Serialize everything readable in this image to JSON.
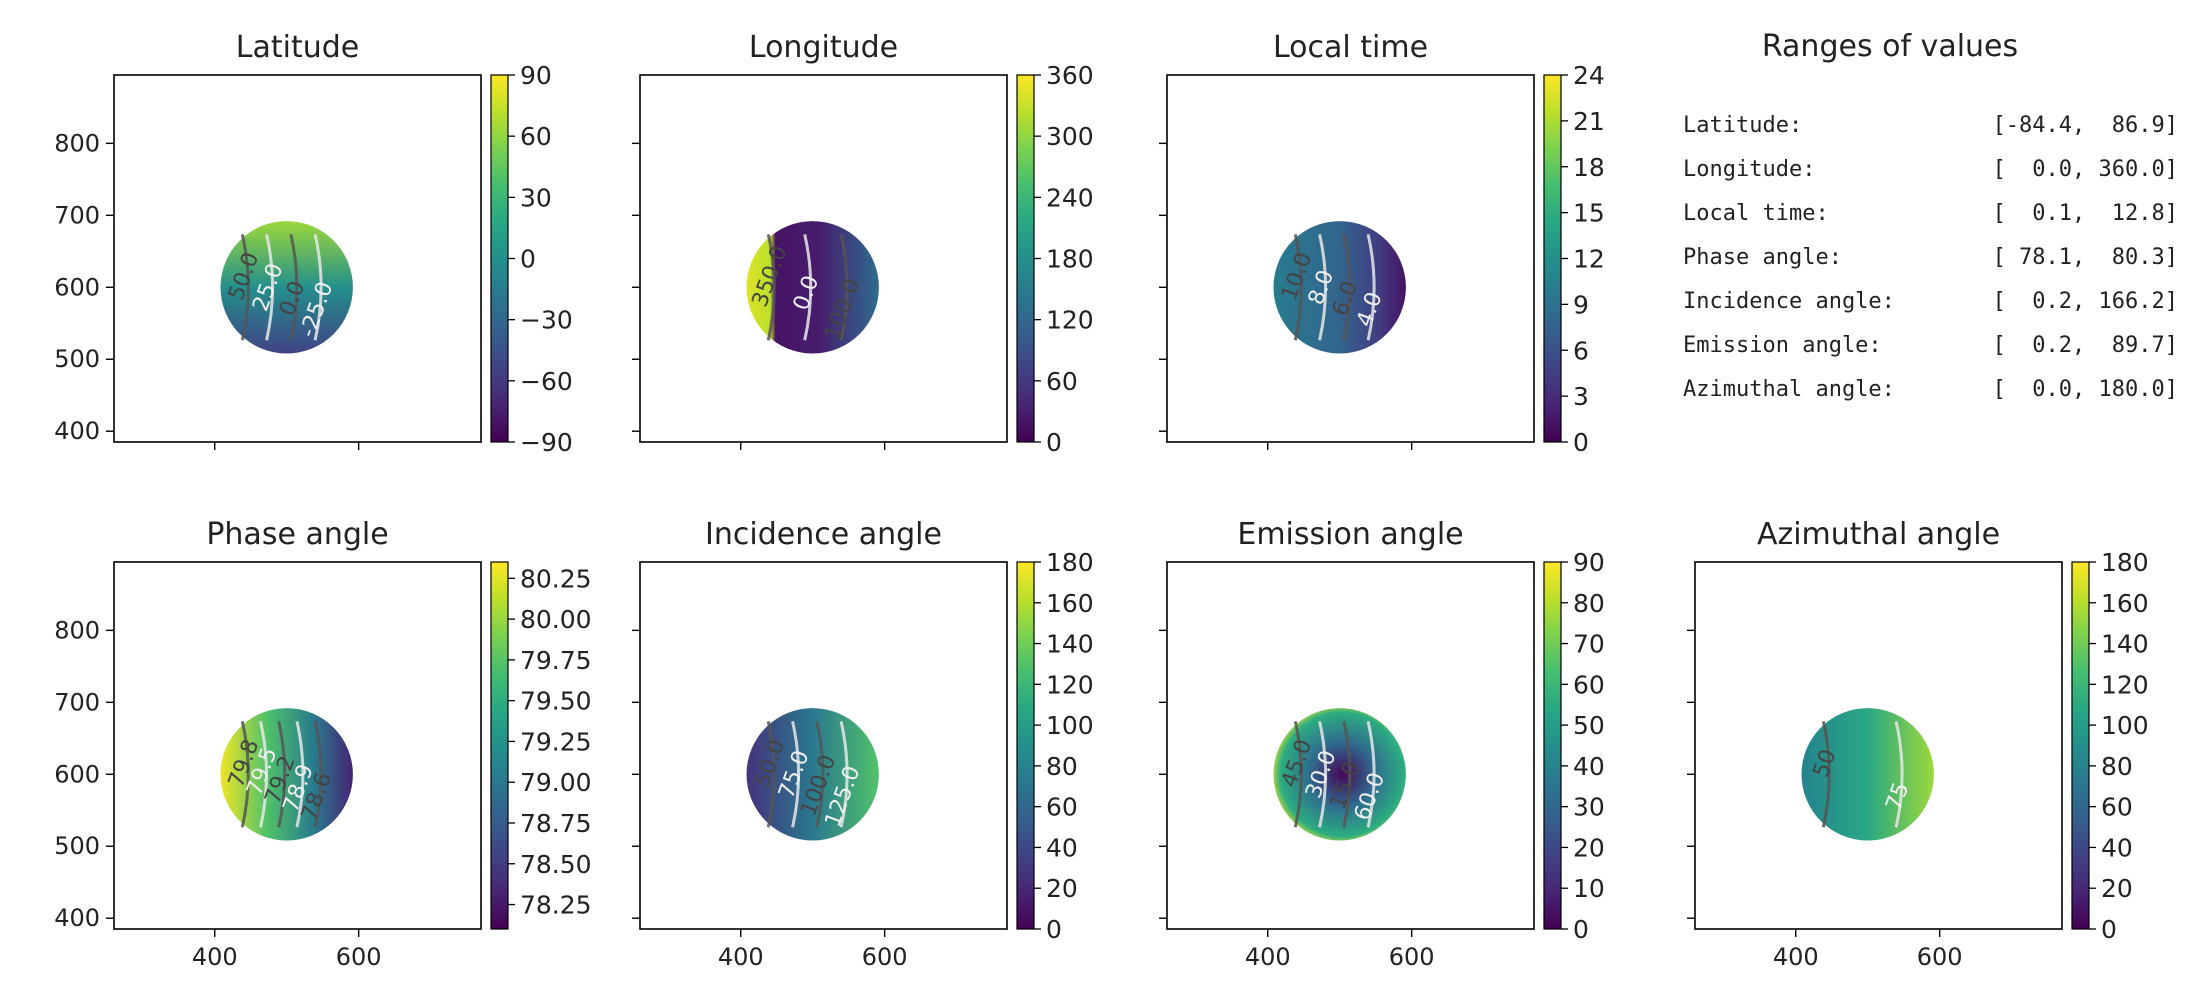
{
  "colormap": "viridis",
  "chart_data": [
    {
      "type": "heatmap",
      "title": "Latitude",
      "xlim": [
        260,
        770
      ],
      "ylim": [
        385,
        895
      ],
      "xticks": [
        400,
        600
      ],
      "yticks": [
        400,
        500,
        600,
        700,
        800
      ],
      "colorbar": {
        "min": -90,
        "max": 90,
        "ticks": [
          -90,
          -60,
          -30,
          0,
          30,
          60,
          90
        ],
        "tick_labels": [
          "−90",
          "−60",
          "−30",
          "0",
          "30",
          "60",
          "90"
        ]
      },
      "disk": {
        "center": [
          500,
          600
        ],
        "radius": 92
      },
      "contour_labels": [
        "50.0",
        "25.0",
        "0.0",
        "-25.0"
      ]
    },
    {
      "type": "heatmap",
      "title": "Longitude",
      "xlim": [
        260,
        770
      ],
      "ylim": [
        385,
        895
      ],
      "xticks": [
        400,
        600
      ],
      "yticks": [
        400,
        500,
        600,
        700,
        800
      ],
      "colorbar": {
        "min": 0,
        "max": 360,
        "ticks": [
          0,
          60,
          120,
          180,
          240,
          300,
          360
        ],
        "tick_labels": [
          "0",
          "60",
          "120",
          "180",
          "240",
          "300",
          "360"
        ]
      },
      "disk": {
        "center": [
          500,
          600
        ],
        "radius": 92
      },
      "contour_labels": [
        "350.0",
        "0.0",
        "100.0"
      ]
    },
    {
      "type": "heatmap",
      "title": "Local time",
      "xlim": [
        260,
        770
      ],
      "ylim": [
        385,
        895
      ],
      "xticks": [
        400,
        600
      ],
      "yticks": [
        400,
        500,
        600,
        700,
        800
      ],
      "colorbar": {
        "min": 0,
        "max": 24,
        "ticks": [
          0,
          3,
          6,
          9,
          12,
          15,
          18,
          21,
          24
        ],
        "tick_labels": [
          "0",
          "3",
          "6",
          "9",
          "12",
          "15",
          "18",
          "21",
          "24"
        ]
      },
      "disk": {
        "center": [
          500,
          600
        ],
        "radius": 92
      },
      "contour_labels": [
        "10.0",
        "8.0",
        "6.0",
        "4.0"
      ]
    },
    {
      "type": "table",
      "title": "Ranges of values",
      "rows": [
        {
          "label": "Latitude:",
          "range": "[-84.4,  86.9]"
        },
        {
          "label": "Longitude:",
          "range": "[  0.0, 360.0]"
        },
        {
          "label": "Local time:",
          "range": "[  0.1,  12.8]"
        },
        {
          "label": "Phase angle:",
          "range": "[ 78.1,  80.3]"
        },
        {
          "label": "Incidence angle:",
          "range": "[  0.2, 166.2]"
        },
        {
          "label": "Emission angle:",
          "range": "[  0.2,  89.7]"
        },
        {
          "label": "Azimuthal angle:",
          "range": "[  0.0, 180.0]"
        }
      ]
    },
    {
      "type": "heatmap",
      "title": "Phase angle",
      "xlim": [
        260,
        770
      ],
      "ylim": [
        385,
        895
      ],
      "xticks": [
        400,
        600
      ],
      "yticks": [
        400,
        500,
        600,
        700,
        800
      ],
      "colorbar": {
        "min": 78.1,
        "max": 80.35,
        "ticks": [
          78.25,
          78.5,
          78.75,
          79.0,
          79.25,
          79.5,
          79.75,
          80.0,
          80.25
        ],
        "tick_labels": [
          "78.25",
          "78.50",
          "78.75",
          "79.00",
          "79.25",
          "79.50",
          "79.75",
          "80.00",
          "80.25"
        ]
      },
      "disk": {
        "center": [
          500,
          600
        ],
        "radius": 92
      },
      "contour_labels": [
        "79.8",
        "79.5",
        "79.2",
        "78.9",
        "78.6"
      ]
    },
    {
      "type": "heatmap",
      "title": "Incidence angle",
      "xlim": [
        260,
        770
      ],
      "ylim": [
        385,
        895
      ],
      "xticks": [
        400,
        600
      ],
      "yticks": [
        400,
        500,
        600,
        700,
        800
      ],
      "colorbar": {
        "min": 0,
        "max": 180,
        "ticks": [
          0,
          20,
          40,
          60,
          80,
          100,
          120,
          140,
          160,
          180
        ],
        "tick_labels": [
          "0",
          "20",
          "40",
          "60",
          "80",
          "100",
          "120",
          "140",
          "160",
          "180"
        ]
      },
      "disk": {
        "center": [
          500,
          600
        ],
        "radius": 92
      },
      "contour_labels": [
        "50.0",
        "75.0",
        "100.0",
        "125.0"
      ]
    },
    {
      "type": "heatmap",
      "title": "Emission angle",
      "xlim": [
        260,
        770
      ],
      "ylim": [
        385,
        895
      ],
      "xticks": [
        400,
        600
      ],
      "yticks": [
        400,
        500,
        600,
        700,
        800
      ],
      "colorbar": {
        "min": 0,
        "max": 90,
        "ticks": [
          0,
          10,
          20,
          30,
          40,
          50,
          60,
          70,
          80,
          90
        ],
        "tick_labels": [
          "0",
          "10",
          "20",
          "30",
          "40",
          "50",
          "60",
          "70",
          "80",
          "90"
        ]
      },
      "disk": {
        "center": [
          500,
          600
        ],
        "radius": 92
      },
      "contour_labels": [
        "45.0",
        "30.0",
        "15.0",
        "60.0"
      ]
    },
    {
      "type": "heatmap",
      "title": "Azimuthal angle",
      "xlim": [
        260,
        770
      ],
      "ylim": [
        385,
        895
      ],
      "xticks": [
        400,
        600
      ],
      "yticks": [
        400,
        500,
        600,
        700,
        800
      ],
      "colorbar": {
        "min": 0,
        "max": 180,
        "ticks": [
          0,
          20,
          40,
          60,
          80,
          100,
          120,
          140,
          160,
          180
        ],
        "tick_labels": [
          "0",
          "20",
          "40",
          "60",
          "80",
          "100",
          "120",
          "140",
          "160",
          "180"
        ]
      },
      "disk": {
        "center": [
          500,
          600
        ],
        "radius": 92
      },
      "contour_labels": [
        "50",
        "75"
      ]
    }
  ]
}
